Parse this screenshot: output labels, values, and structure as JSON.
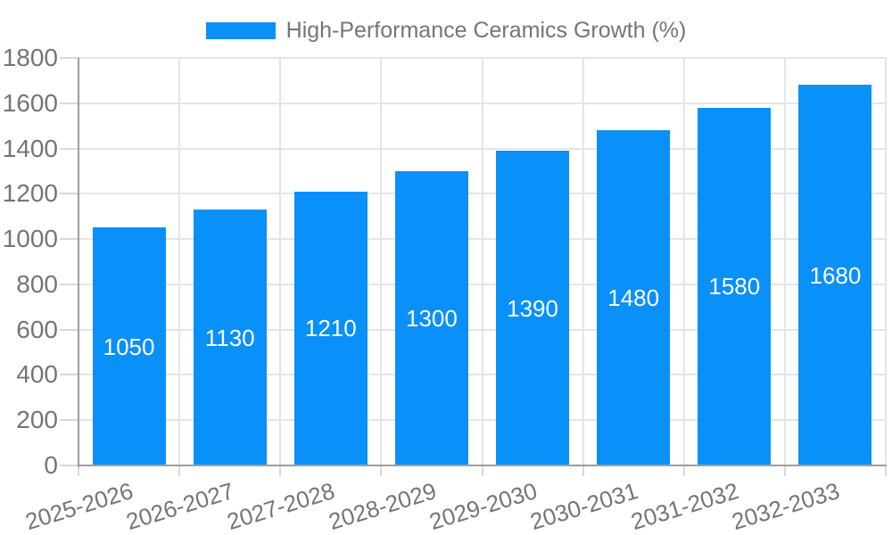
{
  "legend": {
    "label": "High-Performance Ceramics Growth (%)",
    "swatch_color": "#0990F9"
  },
  "chart_data": {
    "type": "bar",
    "title": "",
    "categories": [
      "2025-2026",
      "2026-2027",
      "2027-2028",
      "2028-2029",
      "2029-2030",
      "2030-2031",
      "2031-2032",
      "2032-2033"
    ],
    "series": [
      {
        "name": "High-Performance Ceramics Growth (%)",
        "values": [
          1050,
          1130,
          1210,
          1300,
          1390,
          1480,
          1580,
          1680
        ]
      }
    ],
    "value_labels_shown": true,
    "xlabel": "",
    "ylabel": "",
    "ylim": [
      0,
      1800
    ],
    "yticks": [
      0,
      200,
      400,
      600,
      800,
      1000,
      1200,
      1400,
      1600,
      1800
    ],
    "grid": true,
    "legend_position": "top-center",
    "x_tick_rotation_deg": -17,
    "colors": {
      "bar": "#0990F9",
      "value_label": "#FFFFFF",
      "axis_line": "#9E9E9E",
      "grid_line": "#E5E5E5",
      "tick_line": "#D9D9D9",
      "tick_label": "#757575",
      "legend_text": "#757575",
      "background": "#FFFFFF"
    }
  }
}
